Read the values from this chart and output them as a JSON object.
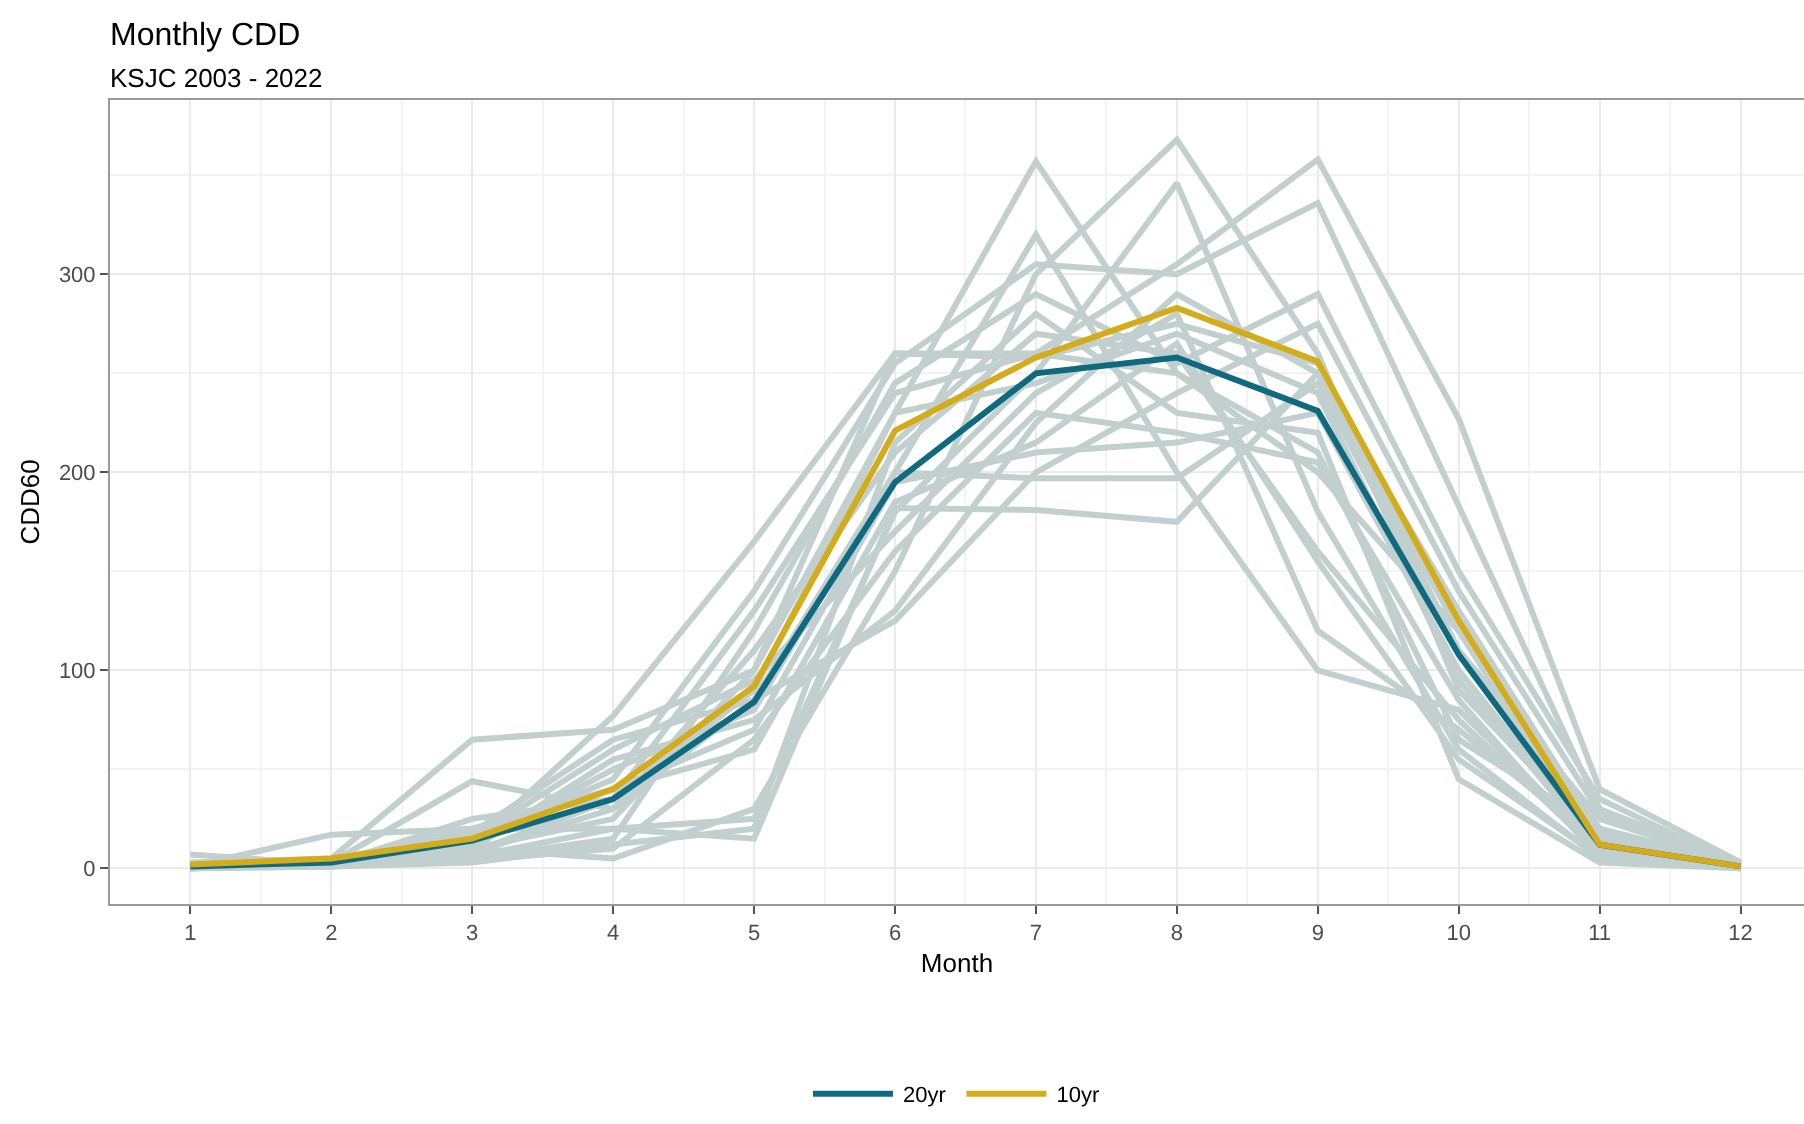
{
  "chart_data": {
    "type": "line",
    "title": "Monthly CDD",
    "subtitle": "KSJC 2003 - 2022",
    "xlabel": "Month",
    "ylabel": "CDD60",
    "x": [
      1,
      2,
      3,
      4,
      5,
      6,
      7,
      8,
      9,
      10,
      11,
      12
    ],
    "xlim": [
      0.43,
      12.45
    ],
    "xticks": [
      1,
      2,
      3,
      4,
      5,
      6,
      7,
      8,
      9,
      10,
      11,
      12
    ],
    "ylim": [
      -18,
      388
    ],
    "yticks": [
      0,
      100,
      200,
      300
    ],
    "grid": true,
    "legend": "bottom",
    "marker": "none",
    "line_style": "solid",
    "series": [
      {
        "color": "#c2cfcf",
        "values": [
          2,
          5,
          65,
          70,
          100,
          230,
          357,
          250,
          200,
          120,
          20,
          2
        ]
      },
      {
        "color": "#c2cfcf",
        "values": [
          1,
          3,
          44,
          30,
          85,
          200,
          320,
          200,
          100,
          80,
          10,
          0
        ]
      },
      {
        "color": "#c2cfcf",
        "values": [
          7,
          2,
          10,
          5,
          30,
          150,
          300,
          368,
          260,
          90,
          15,
          1
        ]
      },
      {
        "color": "#c2cfcf",
        "values": [
          1,
          17,
          20,
          20,
          25,
          180,
          250,
          346,
          180,
          60,
          5,
          1
        ]
      },
      {
        "color": "#c2cfcf",
        "values": [
          0,
          2,
          12,
          77,
          165,
          260,
          260,
          305,
          358,
          227,
          40,
          3
        ]
      },
      {
        "color": "#c2cfcf",
        "values": [
          3,
          5,
          15,
          45,
          140,
          255,
          305,
          300,
          336,
          183,
          30,
          2
        ]
      },
      {
        "color": "#c2cfcf",
        "values": [
          0,
          2,
          5,
          15,
          120,
          245,
          290,
          255,
          290,
          150,
          35,
          1
        ]
      },
      {
        "color": "#c2cfcf",
        "values": [
          1,
          3,
          10,
          25,
          100,
          260,
          258,
          275,
          255,
          110,
          25,
          2
        ]
      },
      {
        "color": "#c2cfcf",
        "values": [
          0,
          1,
          8,
          35,
          90,
          230,
          245,
          270,
          240,
          95,
          10,
          0
        ]
      },
      {
        "color": "#c2cfcf",
        "values": [
          2,
          4,
          18,
          40,
          70,
          195,
          210,
          215,
          230,
          100,
          12,
          1
        ]
      },
      {
        "color": "#c2cfcf",
        "values": [
          1,
          2,
          6,
          20,
          15,
          182,
          181,
          175,
          250,
          120,
          8,
          0
        ]
      },
      {
        "color": "#c2cfcf",
        "values": [
          0,
          3,
          12,
          50,
          80,
          200,
          197,
          197,
          245,
          110,
          15,
          1
        ]
      },
      {
        "color": "#c2cfcf",
        "values": [
          1,
          1,
          4,
          10,
          65,
          160,
          230,
          220,
          205,
          85,
          5,
          0
        ]
      },
      {
        "color": "#c2cfcf",
        "values": [
          0,
          2,
          8,
          30,
          110,
          210,
          270,
          260,
          160,
          75,
          8,
          1
        ]
      },
      {
        "color": "#c2cfcf",
        "values": [
          2,
          3,
          15,
          60,
          95,
          170,
          240,
          280,
          120,
          70,
          12,
          2
        ]
      },
      {
        "color": "#c2cfcf",
        "values": [
          0,
          2,
          10,
          55,
          75,
          130,
          225,
          290,
          250,
          130,
          18,
          1
        ]
      },
      {
        "color": "#c2cfcf",
        "values": [
          1,
          4,
          20,
          40,
          60,
          185,
          215,
          265,
          155,
          55,
          6,
          0
        ]
      },
      {
        "color": "#c2cfcf",
        "values": [
          0,
          1,
          3,
          12,
          20,
          215,
          280,
          230,
          220,
          45,
          3,
          0
        ]
      },
      {
        "color": "#c2cfcf",
        "values": [
          1,
          2,
          25,
          35,
          130,
          240,
          260,
          250,
          210,
          65,
          20,
          1
        ]
      },
      {
        "color": "#c2cfcf",
        "values": [
          0,
          3,
          18,
          65,
          85,
          125,
          200,
          240,
          275,
          140,
          28,
          2
        ]
      },
      {
        "name": "20yr",
        "color": "#0f6a80",
        "values": [
          1,
          3,
          14,
          35,
          84,
          195,
          250,
          258,
          231,
          108,
          12,
          1
        ]
      },
      {
        "name": "10yr",
        "color": "#d4ac19",
        "values": [
          2,
          5,
          15,
          40,
          92,
          221,
          258,
          283,
          256,
          125,
          12,
          1
        ]
      }
    ]
  }
}
